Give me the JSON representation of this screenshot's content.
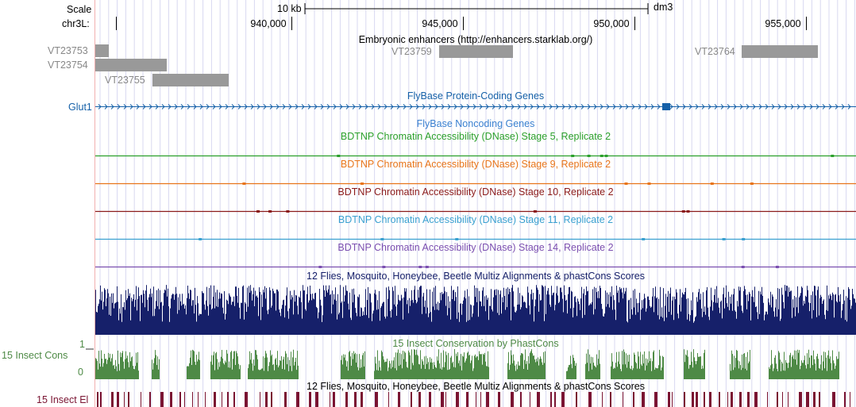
{
  "ruler": {
    "scale_label": "Scale",
    "chrom_label": "chr3L:",
    "scale_bar_text": "10 kb",
    "assembly": "dm3",
    "positions": [
      "940,000",
      "945,000",
      "950,000",
      "955,000"
    ]
  },
  "tracks": {
    "enhancers": {
      "title": "Embryonic enhancers (http://enhancers.starklab.org/)",
      "items": [
        "VT23753",
        "VT23754",
        "VT23755",
        "VT23759",
        "VT23764"
      ]
    },
    "coding": {
      "title": "FlyBase Protein-Coding Genes",
      "gene": "Glut1"
    },
    "noncoding": {
      "title": "FlyBase Noncoding Genes"
    },
    "dnase": [
      {
        "title": "BDTNP Chromatin Accessibility (DNase) Stage 5, Replicate 2",
        "color": "#2ca02c"
      },
      {
        "title": "BDTNP Chromatin Accessibility (DNase) Stage 9, Replicate 2",
        "color": "#e8751a"
      },
      {
        "title": "BDTNP Chromatin Accessibility (DNase) Stage 10, Replicate 2",
        "color": "#8b1a1a"
      },
      {
        "title": "BDTNP Chromatin Accessibility (DNase) Stage 11, Replicate 2",
        "color": "#3aa0d0"
      },
      {
        "title": "BDTNP Chromatin Accessibility (DNase) Stage 14, Replicate 2",
        "color": "#7b4fb0"
      }
    ],
    "multiz": {
      "title": "12 Flies, Mosquito, Honeybee, Beetle Multiz Alignments & phastCons Scores"
    },
    "cons": {
      "title": "15 Insect Conservation by PhastCons",
      "side_label": "15 Insect Cons",
      "ymax": "1",
      "ymin": "0"
    },
    "elements": {
      "title": "12 Flies, Mosquito, Honeybee, Beetle Multiz Alignments & phastCons Scores",
      "side_label": "15 Insect El"
    }
  },
  "colors": {
    "navy": "#16206a",
    "cons_green": "#4e8a46",
    "element_red": "#7a1432",
    "gene_blue": "#1560a8",
    "grid": "#d8d8f0"
  }
}
